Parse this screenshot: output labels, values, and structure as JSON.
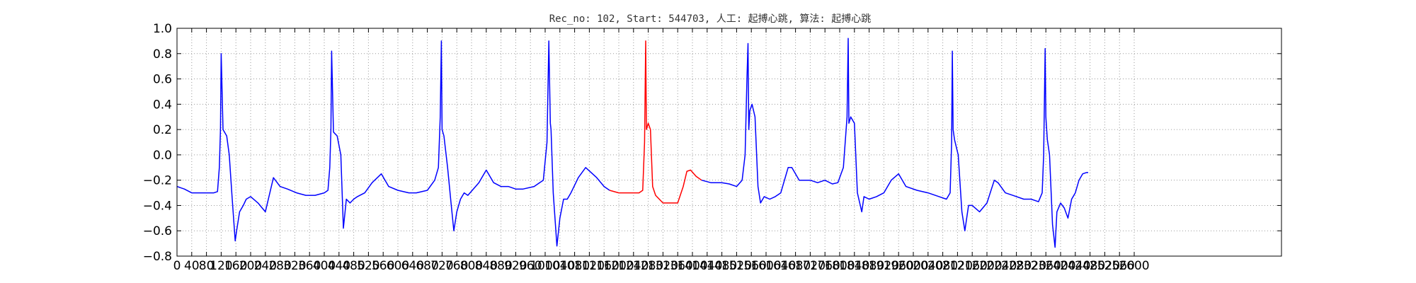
{
  "chart_data": {
    "type": "line",
    "title": "Rec_no: 102, Start: 544703, 人工: 起搏心跳, 算法: 起搏心跳",
    "xlabel": "",
    "ylabel": "",
    "xlim": [
      0,
      3000
    ],
    "ylim": [
      -0.8,
      1.0
    ],
    "grid": true,
    "y_ticks": [
      "1.0",
      "0.8",
      "0.6",
      "0.4",
      "0.2",
      "0.0",
      "−0.2",
      "−0.4",
      "−0.6",
      "−0.8"
    ],
    "x_ticks": [
      "0",
      "40",
      "80",
      "120",
      "160",
      "200",
      "240",
      "280",
      "320",
      "360",
      "400",
      "440",
      "480",
      "520",
      "560",
      "600",
      "640",
      "680",
      "720",
      "760",
      "800",
      "840",
      "880",
      "920",
      "960",
      "1000",
      "1040",
      "1080",
      "1120",
      "1160",
      "1200",
      "1240",
      "1280",
      "1320",
      "1360",
      "1400",
      "1440",
      "1480",
      "1520",
      "1560",
      "1600",
      "1640",
      "1680",
      "1720",
      "1760",
      "1800",
      "1840",
      "1880",
      "1920",
      "1960",
      "2000",
      "2040",
      "2080",
      "2120",
      "2160",
      "2200",
      "2240",
      "2280",
      "2320",
      "2360",
      "2400",
      "2440",
      "2480",
      "2520",
      "2560",
      "2600"
    ],
    "series": [
      {
        "color": "#0000ff",
        "x": [
          0,
          20,
          40,
          60,
          80,
          100,
          110,
          115,
          118,
          120,
          125,
          135,
          142,
          150,
          158,
          162,
          170,
          180,
          188,
          200,
          220,
          240,
          262,
          280,
          300,
          325,
          350,
          375,
          400,
          410,
          415,
          418,
          420,
          425,
          435,
          445,
          452,
          460,
          470,
          480,
          490,
          510,
          530,
          555,
          575,
          600,
          630,
          650,
          680,
          700,
          710,
          715,
          718,
          720,
          725,
          735,
          745,
          752,
          760,
          770,
          780,
          790,
          820,
          840,
          860,
          880,
          900,
          920,
          940,
          970,
          995,
          1005,
          1010,
          1014,
          1016,
          1022,
          1032,
          1040,
          1050,
          1060,
          1070,
          1090,
          1110,
          1140,
          1160,
          1175
        ],
        "y": [
          -0.25,
          -0.27,
          -0.3,
          -0.3,
          -0.3,
          -0.3,
          -0.29,
          -0.1,
          0.2,
          0.8,
          0.2,
          0.15,
          0.0,
          -0.35,
          -0.68,
          -0.6,
          -0.45,
          -0.4,
          -0.35,
          -0.33,
          -0.38,
          -0.45,
          -0.18,
          -0.25,
          -0.27,
          -0.3,
          -0.32,
          -0.32,
          -0.3,
          -0.28,
          -0.1,
          0.2,
          0.82,
          0.18,
          0.15,
          0.0,
          -0.58,
          -0.35,
          -0.38,
          -0.35,
          -0.33,
          -0.3,
          -0.22,
          -0.15,
          -0.25,
          -0.28,
          -0.3,
          -0.3,
          -0.28,
          -0.2,
          -0.1,
          0.3,
          0.9,
          0.2,
          0.15,
          -0.1,
          -0.4,
          -0.6,
          -0.45,
          -0.35,
          -0.3,
          -0.32,
          -0.22,
          -0.12,
          -0.22,
          -0.25,
          -0.25,
          -0.27,
          -0.27,
          -0.25,
          -0.2,
          0.1,
          0.9,
          0.25,
          0.2,
          -0.3,
          -0.72,
          -0.5,
          -0.35,
          -0.35,
          -0.3,
          -0.18,
          -0.1,
          -0.18,
          -0.25,
          -0.28
        ]
      },
      {
        "color": "#ff0000",
        "x": [
          1175,
          1200,
          1225,
          1255,
          1265,
          1270,
          1273,
          1275,
          1280,
          1286,
          1292,
          1300,
          1320,
          1340,
          1360,
          1375,
          1385,
          1395,
          1410,
          1425
        ],
        "y": [
          -0.28,
          -0.3,
          -0.3,
          -0.3,
          -0.28,
          0.1,
          0.9,
          0.2,
          0.25,
          0.2,
          -0.25,
          -0.32,
          -0.38,
          -0.38,
          -0.38,
          -0.25,
          -0.13,
          -0.12,
          -0.17,
          -0.2
        ]
      },
      {
        "color": "#0000ff",
        "x": [
          1425,
          1450,
          1480,
          1500,
          1520,
          1535,
          1543,
          1548,
          1551,
          1553,
          1556,
          1562,
          1570,
          1578,
          1585,
          1595,
          1610,
          1625,
          1640,
          1660,
          1670,
          1690,
          1720,
          1740,
          1760,
          1780,
          1795,
          1810,
          1820,
          1823,
          1825,
          1830,
          1840,
          1848,
          1860,
          1866,
          1880,
          1900,
          1920,
          1940,
          1960,
          1980,
          2010,
          2040,
          2070,
          2090,
          2100,
          2104,
          2106,
          2108,
          2112,
          2122,
          2132,
          2140,
          2150,
          2160,
          2180,
          2200,
          2220,
          2230,
          2250,
          2270,
          2300,
          2320,
          2340,
          2350,
          2354,
          2358,
          2360,
          2364,
          2370,
          2378,
          2385,
          2390,
          2400,
          2410,
          2420,
          2430,
          2440,
          2450,
          2460,
          2470,
          2475
        ],
        "y": [
          -0.2,
          -0.22,
          -0.22,
          -0.23,
          -0.25,
          -0.2,
          0.0,
          0.6,
          0.88,
          0.2,
          0.35,
          0.4,
          0.3,
          -0.25,
          -0.38,
          -0.33,
          -0.35,
          -0.33,
          -0.3,
          -0.1,
          -0.1,
          -0.2,
          -0.2,
          -0.22,
          -0.2,
          -0.23,
          -0.22,
          -0.1,
          0.3,
          0.92,
          0.25,
          0.3,
          0.25,
          -0.3,
          -0.45,
          -0.33,
          -0.35,
          -0.33,
          -0.3,
          -0.2,
          -0.15,
          -0.25,
          -0.28,
          -0.3,
          -0.33,
          -0.35,
          -0.3,
          0.1,
          0.82,
          0.2,
          0.12,
          0.0,
          -0.45,
          -0.6,
          -0.4,
          -0.4,
          -0.45,
          -0.38,
          -0.2,
          -0.22,
          -0.3,
          -0.32,
          -0.35,
          -0.35,
          -0.37,
          -0.3,
          0.0,
          0.84,
          0.3,
          0.12,
          0.0,
          -0.55,
          -0.73,
          -0.45,
          -0.38,
          -0.42,
          -0.5,
          -0.35,
          -0.3,
          -0.2,
          -0.15,
          -0.14,
          -0.14
        ]
      }
    ]
  }
}
